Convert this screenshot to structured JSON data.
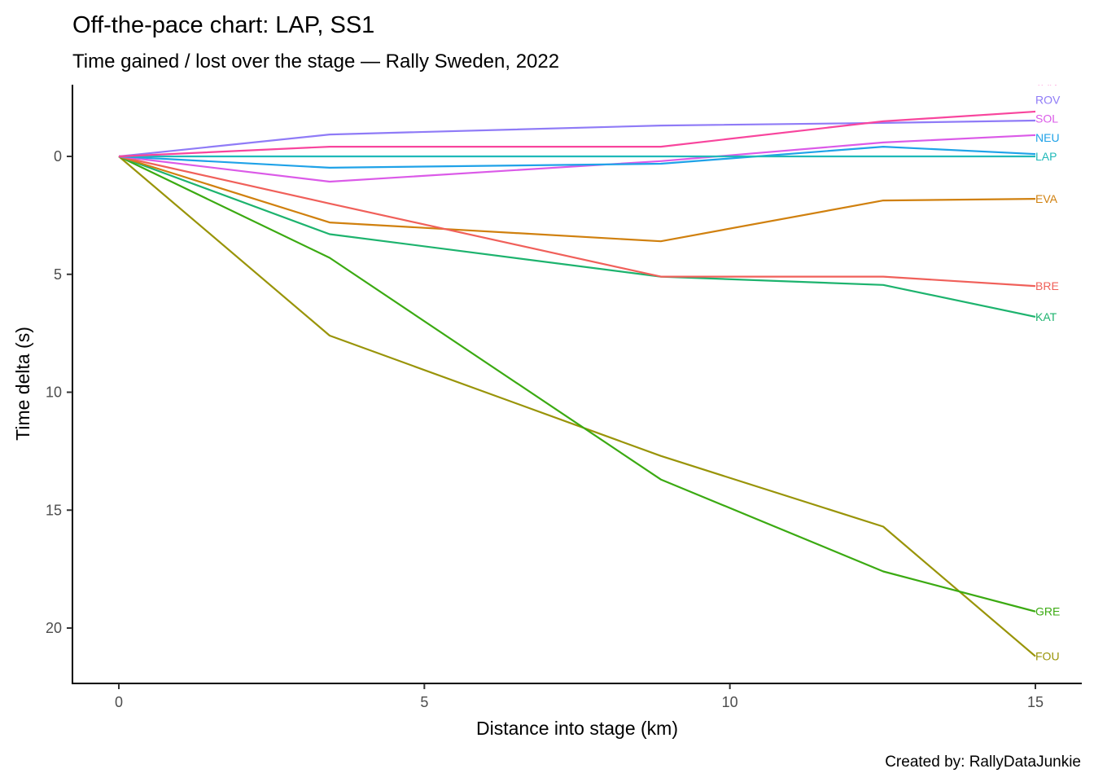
{
  "chart_data": {
    "type": "line",
    "title": "Off-the-pace chart: LAP, SS1",
    "subtitle": "Time gained / lost over the stage — Rally Sweden, 2022",
    "xlabel": "Distance into stage (km)",
    "ylabel": "Time delta (s)",
    "caption": "Created by: RallyDataJunkie",
    "xlim": [
      -0.75,
      15.75
    ],
    "ylim": [
      22.5,
      -3.0
    ],
    "y_reversed": true,
    "grid": false,
    "legend": "direct-labels-right",
    "x_ticks": [
      0,
      5,
      10,
      15
    ],
    "x_tick_labels": [
      "0",
      "5",
      "10",
      "15"
    ],
    "y_ticks": [
      0,
      5,
      10,
      15,
      20
    ],
    "y_tick_labels": [
      "0",
      "5",
      "10",
      "15",
      "20"
    ],
    "x": [
      0,
      3.45,
      8.87,
      12.51,
      15.0
    ],
    "series": [
      {
        "name": "TAN",
        "color": "#FF61C3",
        "line_color": "#F8459D",
        "values": [
          0,
          -0.41,
          -0.41,
          -1.49,
          -1.9
        ],
        "label_offset": -3.2
      },
      {
        "name": "ROV",
        "color": "#8F7BF7",
        "values": [
          0,
          -0.93,
          -1.31,
          -1.42,
          -1.52
        ],
        "label_offset": -2.4
      },
      {
        "name": "SOL",
        "color": "#DB5AE8",
        "values": [
          0,
          1.07,
          0.2,
          -0.59,
          -0.9
        ],
        "label_offset": -1.6
      },
      {
        "name": "NEU",
        "color": "#1FA2E8",
        "values": [
          0,
          0.48,
          0.31,
          -0.41,
          -0.1
        ],
        "label_offset": -0.8
      },
      {
        "name": "LAP",
        "color": "#1FB9B9",
        "values": [
          0,
          0,
          0,
          0,
          0
        ],
        "label_offset": 0
      },
      {
        "name": "EVA",
        "color": "#D0800E",
        "values": [
          0,
          2.8,
          3.6,
          1.87,
          1.8
        ],
        "label_offset": 1.8
      },
      {
        "name": "BRE",
        "color": "#F0605A",
        "values": [
          0,
          2.0,
          5.1,
          5.1,
          5.5
        ],
        "label_offset": 5.5
      },
      {
        "name": "KAT",
        "color": "#1DB36E",
        "values": [
          0,
          3.3,
          5.1,
          5.45,
          6.8
        ],
        "label_offset": 6.8
      },
      {
        "name": "GRE",
        "color": "#3BAA12",
        "values": [
          0,
          4.3,
          13.7,
          17.6,
          19.3
        ],
        "label_offset": 19.3
      },
      {
        "name": "FOU",
        "color": "#999408",
        "values": [
          0,
          7.6,
          12.7,
          15.7,
          21.2
        ],
        "label_offset": 21.2
      }
    ]
  }
}
